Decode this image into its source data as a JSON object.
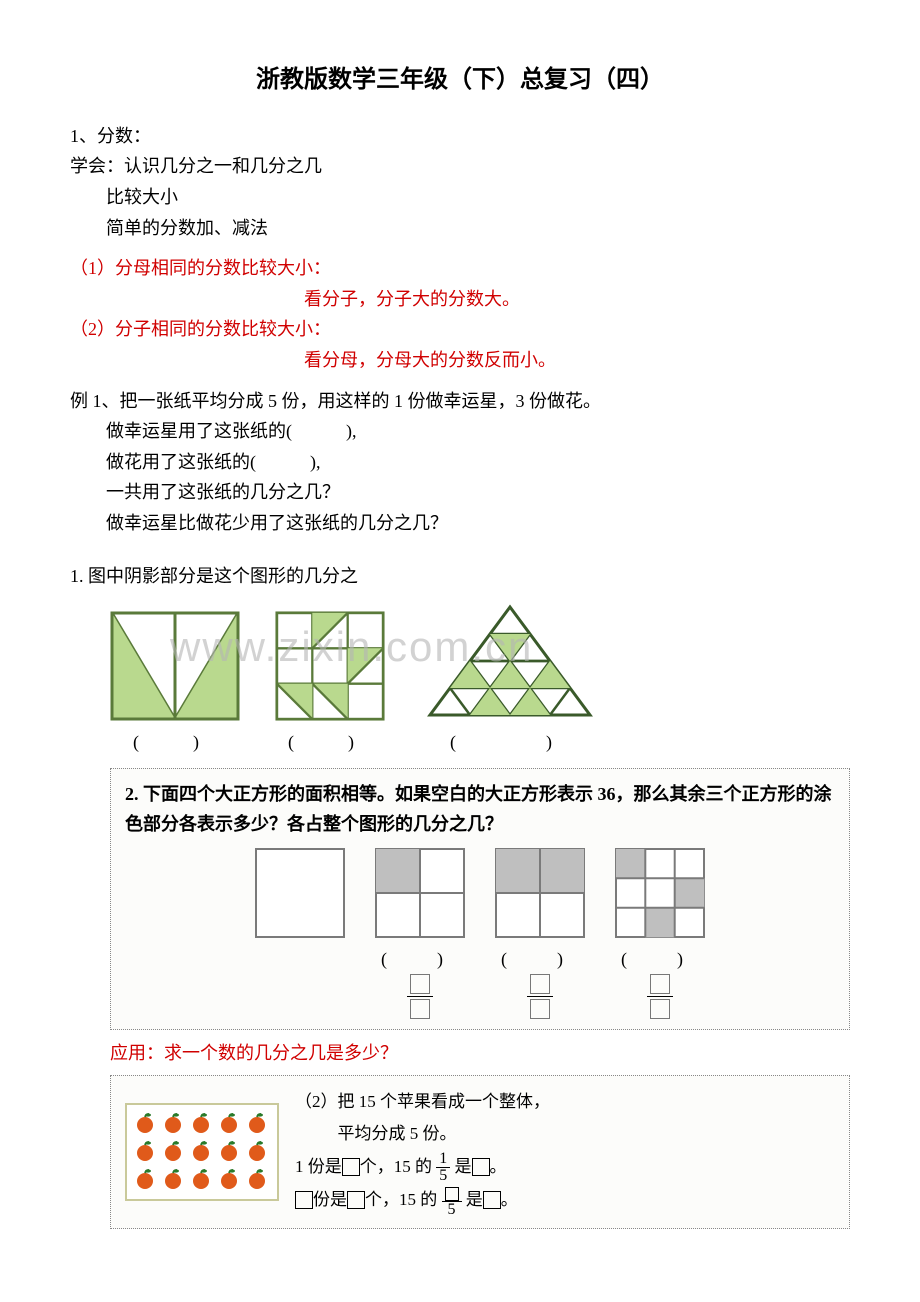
{
  "title": "浙教版数学三年级（下）总复习（四）",
  "s1": {
    "h": "1、分数：",
    "learn": "学会：认识几分之一和几分之几",
    "l2": "比较大小",
    "l3": "简单的分数加、减法"
  },
  "rules": {
    "r1a": "（1）分母相同的分数比较大小：",
    "r1b": "看分子，分子大的分数大。",
    "r2a": "（2）分子相同的分数比较大小：",
    "r2b": "看分母，分母大的分数反而小。"
  },
  "ex1": {
    "l1": "例 1、把一张纸平均分成 5 份，用这样的 1 份做幸运星，3 份做花。",
    "l2": "做幸运星用了这张纸的(　　　),",
    "l3": "做花用了这张纸的(　　　),",
    "l4": "一共用了这张纸的几分之几？",
    "l5": "做幸运星比做花少用了这张纸的几分之几？"
  },
  "fig1": {
    "title": "1. 图中阴影部分是这个图形的几分之",
    "watermark": "www.zixin.com.cn",
    "colors": {
      "fill": "#b9d98e",
      "stroke": "#5a7a3a",
      "tri_stroke": "#3a5a2a"
    }
  },
  "fig2": {
    "title": "2. 下面四个大正方形的面积相等。如果空白的大正方形表示 36，那么其余三个正方形的涂色部分各表示多少？各占整个图形的几分之几？",
    "colors": {
      "fill": "#bfbfbf",
      "stroke": "#7a7a7a",
      "bg": "#f4f4f2"
    }
  },
  "app": {
    "h": "应用：求一个数的几分之几是多少？",
    "t1": "（2）把 15 个苹果看成一个整体，",
    "t2": "平均分成 5 份。",
    "t3a": "1 份是",
    "t3b": "个，15 的",
    "t3c": "是",
    "t3d": "。",
    "frac1_top": "1",
    "frac1_bot": "5",
    "t4a": "份是",
    "t4b": "个，15 的",
    "t4c": "是",
    "t4d": "。",
    "frac2_bot": "5",
    "apple_color": "#e05a1a",
    "leaf_color": "#2a7a2a"
  }
}
